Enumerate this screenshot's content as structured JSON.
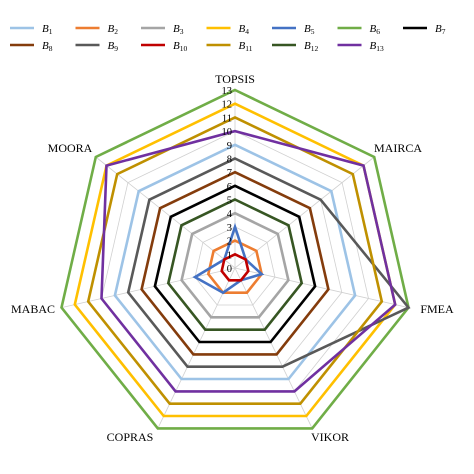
{
  "chart_data": {
    "type": "radar",
    "axes": [
      "TOPSIS",
      "MAIRCA",
      "FMEA",
      "VIKOR",
      "COPRAS",
      "MABAC",
      "MOORA"
    ],
    "rlim": [
      0,
      13
    ],
    "tick_labels": [
      "0",
      "1",
      "2",
      "3",
      "4",
      "5",
      "6",
      "7",
      "8",
      "9",
      "10",
      "11",
      "12",
      "13"
    ],
    "grid": true,
    "legend_position": "top",
    "series": [
      {
        "label": "B",
        "sub": "1",
        "color": "#9DC3E6",
        "values": [
          9,
          9,
          9,
          9,
          9,
          9,
          9
        ]
      },
      {
        "label": "B",
        "sub": "2",
        "color": "#ED7D31",
        "values": [
          2,
          2,
          2,
          2,
          2,
          2,
          2
        ]
      },
      {
        "label": "B",
        "sub": "3",
        "color": "#A5A5A5",
        "values": [
          4,
          4,
          4,
          4,
          4,
          4,
          4
        ]
      },
      {
        "label": "B",
        "sub": "4",
        "color": "#FFC000",
        "values": [
          12,
          12,
          12,
          12,
          12,
          12,
          12
        ]
      },
      {
        "label": "B",
        "sub": "5",
        "color": "#4472C4",
        "values": [
          3,
          1,
          2,
          1,
          2,
          3,
          1
        ]
      },
      {
        "label": "B",
        "sub": "6",
        "color": "#70AD47",
        "values": [
          13,
          13,
          13,
          13,
          13,
          13,
          13
        ]
      },
      {
        "label": "B",
        "sub": "7",
        "color": "#000000",
        "values": [
          6,
          6,
          6,
          6,
          6,
          6,
          6
        ]
      },
      {
        "label": "B",
        "sub": "8",
        "color": "#843C0C",
        "values": [
          7,
          7,
          7,
          7,
          7,
          7,
          7
        ]
      },
      {
        "label": "B",
        "sub": "9",
        "color": "#595959",
        "values": [
          8,
          8,
          13,
          8,
          8,
          8,
          8
        ]
      },
      {
        "label": "B",
        "sub": "10",
        "color": "#C00000",
        "values": [
          1,
          1,
          1,
          1,
          1,
          1,
          1
        ]
      },
      {
        "label": "B",
        "sub": "11",
        "color": "#BF9000",
        "values": [
          11,
          11,
          11,
          11,
          11,
          11,
          11
        ]
      },
      {
        "label": "B",
        "sub": "12",
        "color": "#375623",
        "values": [
          5,
          5,
          5,
          5,
          5,
          5,
          5
        ]
      },
      {
        "label": "B",
        "sub": "13",
        "color": "#7030A0",
        "values": [
          10,
          12,
          12,
          10,
          10,
          10,
          12
        ]
      }
    ]
  }
}
